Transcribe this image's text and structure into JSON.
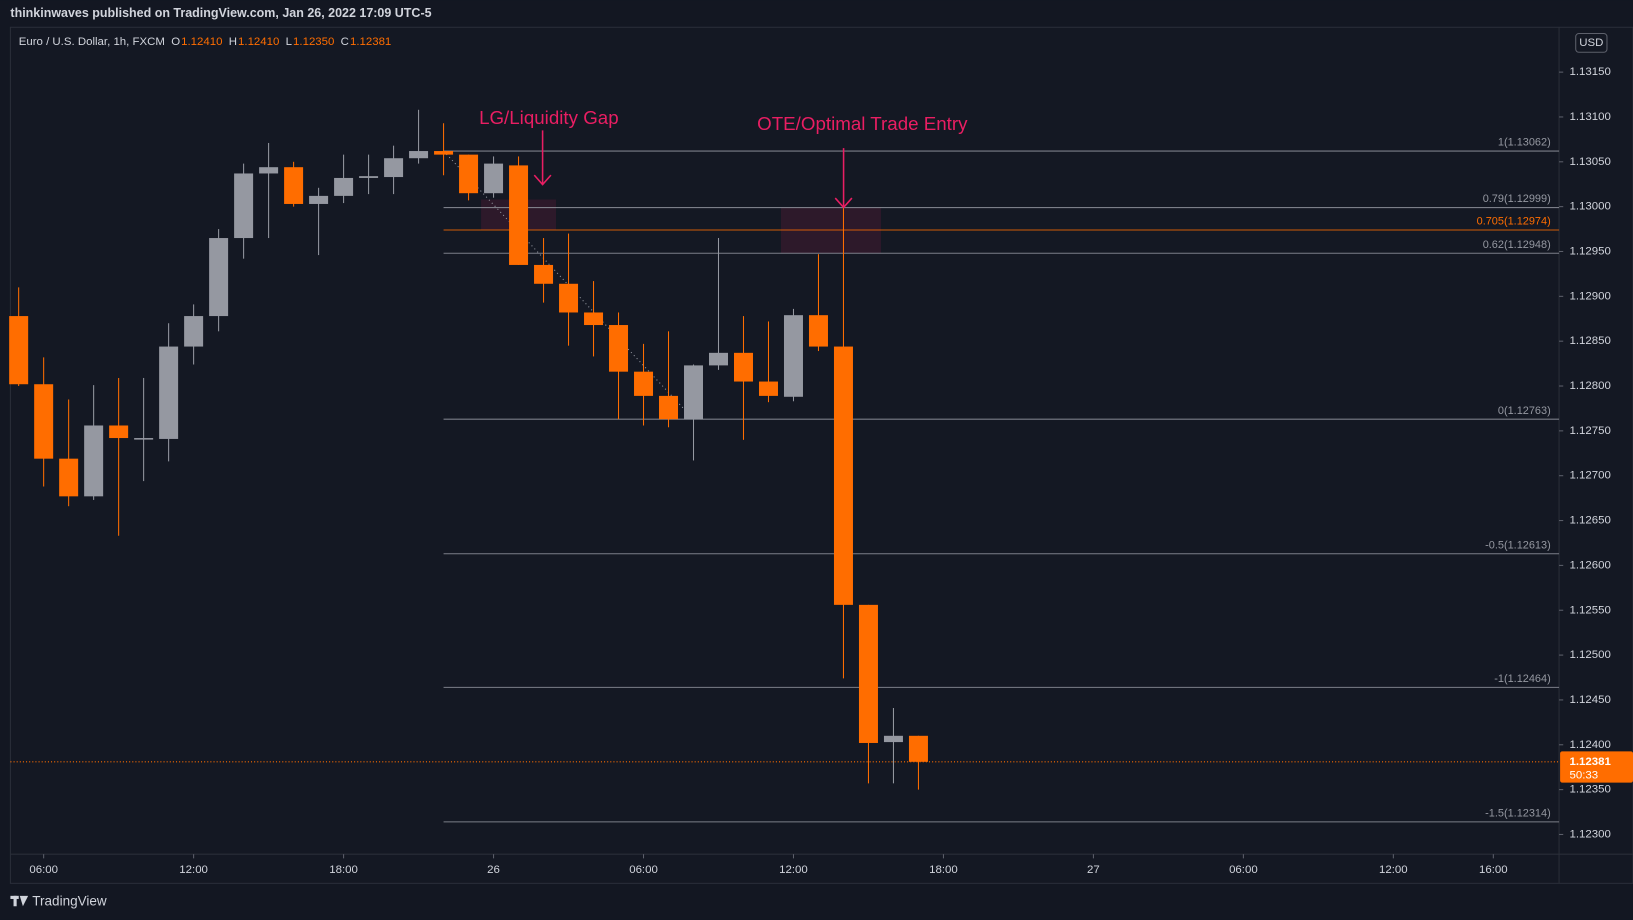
{
  "header": {
    "published": "thinkinwaves published on TradingView.com, Jan 26, 2022 17:09 UTC-5",
    "symbol": "Euro / U.S. Dollar, 1h, FXCM",
    "ohlc": [
      {
        "key": "O",
        "value": "1.12410"
      },
      {
        "key": "H",
        "value": "1.12410"
      },
      {
        "key": "L",
        "value": "1.12350"
      },
      {
        "key": "C",
        "value": "1.12381"
      }
    ],
    "currency": "USD"
  },
  "chart_data": {
    "type": "candlestick",
    "categories": [
      null,
      null,
      null,
      null,
      null,
      null,
      null,
      null,
      null,
      null,
      null,
      null,
      null,
      null,
      null,
      null,
      null,
      null,
      null,
      null,
      null,
      null,
      null,
      null,
      null,
      null,
      null,
      null,
      null,
      null,
      null,
      null,
      null,
      null,
      null,
      null,
      null
    ],
    "open": [
      1.12878,
      1.12802,
      1.12719,
      1.12677,
      1.12756,
      1.12742,
      1.12741,
      1.12844,
      1.12878,
      1.12965,
      1.13037,
      1.13044,
      1.13003,
      1.13012,
      1.13032,
      1.13033,
      1.13054,
      1.13062,
      1.13058,
      1.13015,
      1.13046,
      1.12935,
      1.12914,
      1.12882,
      1.12868,
      1.12816,
      1.12789,
      1.12763,
      1.12823,
      1.12837,
      1.12805,
      1.12788,
      1.12879,
      1.12844,
      1.12556,
      1.12403,
      1.1241
    ],
    "high": [
      1.1291,
      1.12832,
      1.12785,
      1.12801,
      1.12809,
      1.12809,
      1.1287,
      1.12891,
      1.12975,
      1.13048,
      1.13071,
      1.1305,
      1.13021,
      1.13058,
      1.13058,
      1.13068,
      1.13108,
      1.13093,
      1.13058,
      1.13056,
      1.13056,
      1.12965,
      1.1297,
      1.12917,
      1.12882,
      1.12847,
      1.12861,
      1.12824,
      1.12965,
      1.12878,
      1.12872,
      1.12886,
      1.12947,
      1.12999,
      1.12556,
      1.12441,
      1.1241
    ],
    "low": [
      1.128,
      1.12688,
      1.12666,
      1.12673,
      1.12633,
      1.12694,
      1.12716,
      1.12824,
      1.12861,
      1.12942,
      1.12965,
      1.13,
      1.12946,
      1.13004,
      1.13014,
      1.13014,
      1.13048,
      1.13035,
      1.13007,
      1.1301,
      1.12935,
      1.12893,
      1.12845,
      1.12833,
      1.12763,
      1.12756,
      1.12754,
      1.12717,
      1.12818,
      1.1274,
      1.12782,
      1.12783,
      1.12839,
      1.12474,
      1.12357,
      1.12357,
      1.1235
    ],
    "close": [
      1.12802,
      1.12719,
      1.12677,
      1.12756,
      1.12742,
      1.12742,
      1.12844,
      1.12878,
      1.12965,
      1.13037,
      1.13044,
      1.13003,
      1.13012,
      1.13032,
      1.13034,
      1.13054,
      1.13062,
      1.13058,
      1.13015,
      1.13048,
      1.12935,
      1.12914,
      1.12882,
      1.12868,
      1.12816,
      1.12789,
      1.12763,
      1.12823,
      1.12837,
      1.12805,
      1.12789,
      1.12879,
      1.12844,
      1.12556,
      1.12402,
      1.1241,
      1.12381
    ],
    "up_color": "#9598a1",
    "down_color": "#ff6d00",
    "xlim": [
      -0.33,
      61.63
    ],
    "xticks": [
      {
        "value": 1,
        "label": "06:00"
      },
      {
        "value": 7,
        "label": "12:00"
      },
      {
        "value": 13,
        "label": "18:00"
      },
      {
        "value": 19,
        "label": "26"
      },
      {
        "value": 25,
        "label": "06:00"
      },
      {
        "value": 31,
        "label": "12:00"
      },
      {
        "value": 37,
        "label": "18:00"
      },
      {
        "value": 43,
        "label": "27"
      },
      {
        "value": 49,
        "label": "06:00"
      },
      {
        "value": 55,
        "label": "12:00"
      },
      {
        "value": 59,
        "label": "16:00"
      }
    ],
    "ylim": [
      1.12278,
      1.132
    ],
    "yticks": [
      {
        "value": 1.1315,
        "label": "1.13150"
      },
      {
        "value": 1.131,
        "label": "1.13100"
      },
      {
        "value": 1.1305,
        "label": "1.13050"
      },
      {
        "value": 1.13,
        "label": "1.13000"
      },
      {
        "value": 1.1295,
        "label": "1.12950"
      },
      {
        "value": 1.129,
        "label": "1.12900"
      },
      {
        "value": 1.1285,
        "label": "1.12850"
      },
      {
        "value": 1.128,
        "label": "1.12800"
      },
      {
        "value": 1.1275,
        "label": "1.12750"
      },
      {
        "value": 1.127,
        "label": "1.12700"
      },
      {
        "value": 1.1265,
        "label": "1.12650"
      },
      {
        "value": 1.126,
        "label": "1.12600"
      },
      {
        "value": 1.1255,
        "label": "1.12550"
      },
      {
        "value": 1.125,
        "label": "1.12500"
      },
      {
        "value": 1.1245,
        "label": "1.12450"
      },
      {
        "value": 1.124,
        "label": "1.12400"
      },
      {
        "value": 1.1235,
        "label": "1.12350"
      },
      {
        "value": 1.123,
        "label": "1.12300"
      }
    ],
    "fib_levels": [
      {
        "label": "1(1.13062)",
        "value": 1.13062,
        "color": "#9598a1"
      },
      {
        "label": "0.79(1.12999)",
        "value": 1.12999,
        "color": "#9598a1"
      },
      {
        "label": "0.705(1.12974)",
        "value": 1.12974,
        "color": "#ff6d00"
      },
      {
        "label": "0.62(1.12948)",
        "value": 1.12948,
        "color": "#9598a1"
      },
      {
        "label": "0(1.12763)",
        "value": 1.12763,
        "color": "#9598a1"
      },
      {
        "label": "-0.5(1.12613)",
        "value": 1.12613,
        "color": "#9598a1"
      },
      {
        "label": "-1(1.12464)",
        "value": 1.12464,
        "color": "#9598a1"
      },
      {
        "label": "-1.5(1.12314)",
        "value": 1.12314,
        "color": "#9598a1"
      }
    ],
    "zones": [
      {
        "top": 1.13008,
        "bottom": 1.12974
      },
      {
        "top": 1.12999,
        "bottom": 1.12948
      }
    ],
    "annotations": [
      {
        "text": "LG/Liquidity Gap",
        "color": "#e91e63"
      },
      {
        "text": "OTE/Optimal Trade Entry",
        "color": "#e91e63"
      }
    ],
    "last_price": {
      "value": 1.12381,
      "label": "1.12381",
      "countdown": "50:33"
    }
  },
  "footer": {
    "brand": "TradingView"
  }
}
